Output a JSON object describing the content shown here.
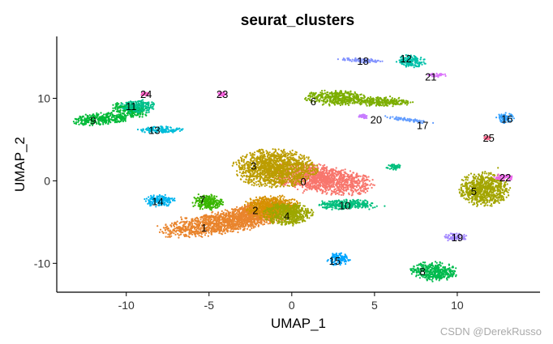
{
  "chart_data": {
    "type": "scatter",
    "title": "seurat_clusters",
    "xlabel": "UMAP_1",
    "ylabel": "UMAP_2",
    "xlim": [
      -14.2,
      15
    ],
    "ylim": [
      -13.5,
      17.5
    ],
    "xticks": [
      -10,
      -5,
      0,
      5,
      10
    ],
    "yticks": [
      -10,
      0,
      10
    ],
    "grid": false,
    "legend": "none",
    "clusters": [
      {
        "label": "0",
        "color": "#F8766D",
        "blobs": [
          {
            "cx": 1.8,
            "cy": 0.2,
            "rx": 3.2,
            "ry": 1.6,
            "rot": -18
          }
        ],
        "label_pos": [
          0.7,
          -0.1
        ]
      },
      {
        "label": "1",
        "color": "#E9842C",
        "blobs": [
          {
            "cx": -4.0,
            "cy": -5.0,
            "rx": 4.0,
            "ry": 1.3,
            "rot": 18
          },
          {
            "cx": -2.0,
            "cy": -3.6,
            "rx": 2.0,
            "ry": 1.0,
            "rot": 25
          }
        ],
        "label_pos": [
          -5.3,
          -5.7
        ]
      },
      {
        "label": "2",
        "color": "#D69100",
        "blobs": [
          {
            "cx": -1.2,
            "cy": -3.2,
            "rx": 1.6,
            "ry": 1.4,
            "rot": 0
          }
        ],
        "label_pos": [
          -2.2,
          -3.6
        ]
      },
      {
        "label": "3",
        "color": "#BC9D00",
        "blobs": [
          {
            "cx": -1.0,
            "cy": 1.5,
            "rx": 2.4,
            "ry": 2.2,
            "rot": -10
          }
        ],
        "label_pos": [
          -2.3,
          1.8
        ]
      },
      {
        "label": "4",
        "color": "#9CA700",
        "blobs": [
          {
            "cx": -0.2,
            "cy": -4.0,
            "rx": 1.4,
            "ry": 1.4,
            "rot": 0
          }
        ],
        "label_pos": [
          -0.3,
          -4.3
        ]
      },
      {
        "label": "5",
        "color": "#A3A500",
        "blobs": [
          {
            "cx": 11.6,
            "cy": -1.0,
            "rx": 1.5,
            "ry": 2.0,
            "rot": 0
          }
        ],
        "label_pos": [
          11.0,
          -1.3
        ]
      },
      {
        "label": "6",
        "color": "#7CAE00",
        "blobs": [
          {
            "cx": 2.8,
            "cy": 10.0,
            "rx": 1.9,
            "ry": 0.9,
            "rot": -6
          },
          {
            "cx": 5.6,
            "cy": 9.6,
            "rx": 1.6,
            "ry": 0.6,
            "rot": 0
          }
        ],
        "label_pos": [
          1.3,
          9.6
        ]
      },
      {
        "label": "7",
        "color": "#39B600",
        "blobs": [
          {
            "cx": -5.1,
            "cy": -2.6,
            "rx": 0.9,
            "ry": 0.9,
            "rot": 0
          }
        ],
        "label_pos": [
          -5.4,
          -2.3
        ]
      },
      {
        "label": "8",
        "color": "#00BB4E",
        "blobs": [
          {
            "cx": 8.6,
            "cy": -11.0,
            "rx": 1.4,
            "ry": 1.1,
            "rot": -10
          }
        ],
        "label_pos": [
          7.9,
          -11.0
        ]
      },
      {
        "label": "9",
        "color": "#00BA38",
        "blobs": [
          {
            "cx": -11.5,
            "cy": 7.5,
            "rx": 1.7,
            "ry": 0.7,
            "rot": 8
          },
          {
            "cx": -9.8,
            "cy": 8.6,
            "rx": 1.2,
            "ry": 0.7,
            "rot": -25
          }
        ],
        "label_pos": [
          -12.0,
          7.3
        ]
      },
      {
        "label": "10",
        "color": "#00BF7D",
        "blobs": [
          {
            "cx": 3.3,
            "cy": -2.9,
            "rx": 1.8,
            "ry": 0.6,
            "rot": 0
          },
          {
            "cx": 6.2,
            "cy": 1.7,
            "rx": 0.5,
            "ry": 0.4,
            "rot": 0
          }
        ],
        "label_pos": [
          3.2,
          -3.0
        ]
      },
      {
        "label": "11",
        "color": "#00C08B",
        "blobs": [
          {
            "cx": -9.3,
            "cy": 9.0,
            "rx": 1.0,
            "ry": 0.8,
            "rot": 0
          }
        ],
        "label_pos": [
          -9.7,
          9.0
        ]
      },
      {
        "label": "12",
        "color": "#00C1AA",
        "blobs": [
          {
            "cx": 7.2,
            "cy": 14.5,
            "rx": 0.9,
            "ry": 0.7,
            "rot": -20
          }
        ],
        "label_pos": [
          6.9,
          14.8
        ]
      },
      {
        "label": "13",
        "color": "#00BCD8",
        "blobs": [
          {
            "cx": -7.9,
            "cy": 6.2,
            "rx": 1.3,
            "ry": 0.4,
            "rot": 0
          }
        ],
        "label_pos": [
          -8.3,
          6.1
        ]
      },
      {
        "label": "14",
        "color": "#00B4F0",
        "blobs": [
          {
            "cx": -8.0,
            "cy": -2.4,
            "rx": 0.9,
            "ry": 0.7,
            "rot": 0
          }
        ],
        "label_pos": [
          -8.1,
          -2.5
        ]
      },
      {
        "label": "15",
        "color": "#00A5FF",
        "blobs": [
          {
            "cx": 2.8,
            "cy": -9.5,
            "rx": 0.7,
            "ry": 0.7,
            "rot": 0
          }
        ],
        "label_pos": [
          2.6,
          -9.7
        ]
      },
      {
        "label": "16",
        "color": "#35A2FF",
        "blobs": [
          {
            "cx": 12.9,
            "cy": 7.6,
            "rx": 0.5,
            "ry": 0.6,
            "rot": 0
          }
        ],
        "label_pos": [
          13.0,
          7.5
        ]
      },
      {
        "label": "17",
        "color": "#619CFF",
        "blobs": [
          {
            "cx": 7.0,
            "cy": 7.4,
            "rx": 1.5,
            "ry": 0.2,
            "rot": -15
          }
        ],
        "label_pos": [
          7.9,
          6.7
        ]
      },
      {
        "label": "18",
        "color": "#8494FF",
        "blobs": [
          {
            "cx": 4.3,
            "cy": 14.6,
            "rx": 1.4,
            "ry": 0.25,
            "rot": -6
          }
        ],
        "label_pos": [
          4.3,
          14.5
        ]
      },
      {
        "label": "19",
        "color": "#A58AFF",
        "blobs": [
          {
            "cx": 9.9,
            "cy": -6.8,
            "rx": 0.7,
            "ry": 0.5,
            "rot": 0
          }
        ],
        "label_pos": [
          10.0,
          -6.9
        ]
      },
      {
        "label": "20",
        "color": "#C77CFF",
        "blobs": [
          {
            "cx": 4.3,
            "cy": 7.8,
            "rx": 0.3,
            "ry": 0.3,
            "rot": 0
          }
        ],
        "label_pos": [
          5.1,
          7.4
        ]
      },
      {
        "label": "21",
        "color": "#DB72FB",
        "blobs": [
          {
            "cx": 8.8,
            "cy": 12.8,
            "rx": 0.6,
            "ry": 0.2,
            "rot": 0
          }
        ],
        "label_pos": [
          8.4,
          12.6
        ]
      },
      {
        "label": "22",
        "color": "#ED68ED",
        "blobs": [
          {
            "cx": 12.8,
            "cy": 0.4,
            "rx": 0.6,
            "ry": 0.4,
            "rot": 0
          }
        ],
        "label_pos": [
          12.9,
          0.4
        ]
      },
      {
        "label": "23",
        "color": "#F863DF",
        "blobs": [
          {
            "cx": -4.2,
            "cy": 10.5,
            "rx": 0.25,
            "ry": 0.25,
            "rot": 0
          }
        ],
        "label_pos": [
          -4.2,
          10.5
        ]
      },
      {
        "label": "24",
        "color": "#FF61C3",
        "blobs": [
          {
            "cx": -8.9,
            "cy": 10.5,
            "rx": 0.25,
            "ry": 0.25,
            "rot": 0
          }
        ],
        "label_pos": [
          -8.8,
          10.5
        ]
      },
      {
        "label": "25",
        "color": "#FF6C91",
        "blobs": [
          {
            "cx": 11.8,
            "cy": 5.2,
            "rx": 0.2,
            "ry": 0.2,
            "rot": 0
          }
        ],
        "label_pos": [
          11.9,
          5.2
        ]
      }
    ]
  },
  "watermark": "CSDN @DerekRusso"
}
